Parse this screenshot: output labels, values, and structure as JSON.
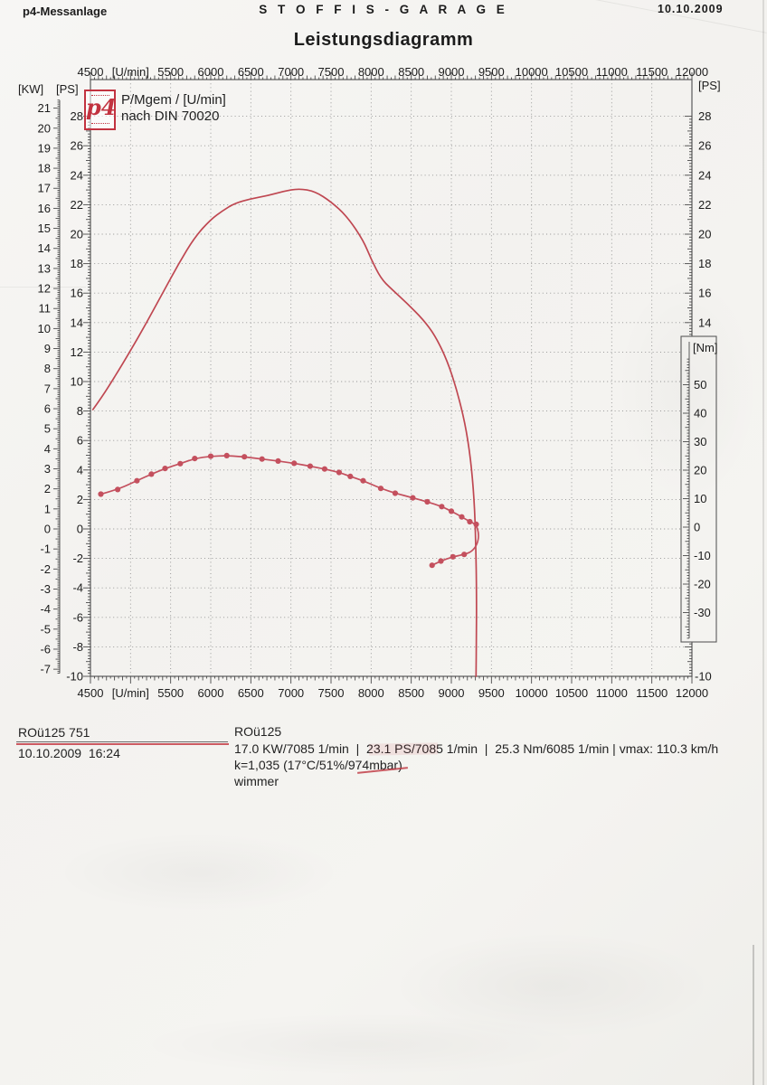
{
  "header": {
    "left": "p4-Messanlage",
    "center": "S T O F F I S - G A R A G E",
    "right": "10.10.2009"
  },
  "title": "Leistungsdiagramm",
  "legend": {
    "logo": "p4",
    "measure_label": "P/Mgem / [U/min]",
    "norm_label": "nach DIN 70020"
  },
  "footer": {
    "run_label": "ROü125 751",
    "run_datetime": "10.10.2009  16:24",
    "vehicle_name": "ROü125",
    "results": "17.0 KW/7085 1/min  |  23.1 PS/7085 1/min  |  25.3 Nm/6085 1/min | vmax: 110.3 km/h",
    "correction": "k=1,035 (17°C/51%/974mbar)",
    "operator": "wimmer"
  },
  "chart_data": {
    "type": "line",
    "title": "Leistungsdiagramm",
    "grid": "dotted, 500 U/min × 2 PS",
    "x_axis": {
      "unit": "U/min",
      "min": 4500,
      "max": 12000,
      "major_step": 500,
      "tick_labels": [
        "4500",
        "[U/min]",
        "5500",
        "6000",
        "6500",
        "7000",
        "7500",
        "8000",
        "8500",
        "9000",
        "9500",
        "10000",
        "10500",
        "11000",
        "11500",
        "12000"
      ]
    },
    "y_axes": {
      "kw_left": {
        "label": "[KW]",
        "min": -7,
        "max": 21,
        "step": 1
      },
      "ps_left": {
        "label": "[PS]",
        "min": -10,
        "max": 28,
        "step": 2
      },
      "ps_right": {
        "label": "[PS]",
        "visible_labels": [
          28,
          26,
          24,
          22,
          20,
          18,
          16,
          14
        ],
        "bottom_label": "-10"
      },
      "nm_right": {
        "label": "[Nm]",
        "min": -30,
        "max": 50,
        "step": 10
      }
    },
    "series": [
      {
        "id": "power",
        "name": "P",
        "unit": "PS",
        "axis": "ps",
        "color": "#bf4751",
        "markers": false,
        "points": [
          [
            4530,
            8.1
          ],
          [
            4650,
            9.0
          ],
          [
            4800,
            10.3
          ],
          [
            5000,
            12.1
          ],
          [
            5200,
            14.0
          ],
          [
            5400,
            16.0
          ],
          [
            5600,
            18.0
          ],
          [
            5800,
            19.8
          ],
          [
            6000,
            21.0
          ],
          [
            6150,
            21.6
          ],
          [
            6300,
            22.1
          ],
          [
            6500,
            22.4
          ],
          [
            6700,
            22.6
          ],
          [
            6900,
            22.9
          ],
          [
            7100,
            23.1
          ],
          [
            7300,
            22.9
          ],
          [
            7500,
            22.2
          ],
          [
            7700,
            21.2
          ],
          [
            7900,
            19.6
          ],
          [
            8000,
            18.3
          ],
          [
            8120,
            17.0
          ],
          [
            8250,
            16.3
          ],
          [
            8450,
            15.3
          ],
          [
            8650,
            14.2
          ],
          [
            8800,
            13.1
          ],
          [
            8950,
            11.4
          ],
          [
            9070,
            9.4
          ],
          [
            9170,
            7.2
          ],
          [
            9240,
            4.8
          ],
          [
            9285,
            2.0
          ],
          [
            9305,
            -1.0
          ],
          [
            9315,
            -4.5
          ],
          [
            9312,
            -7.5
          ],
          [
            9308,
            -10.0
          ]
        ]
      },
      {
        "id": "torque",
        "name": "Mgem",
        "unit": "Nm",
        "axis": "nm",
        "color": "#c4505e",
        "markers": true,
        "points": [
          [
            4630,
            11.6,
            1
          ],
          [
            4840,
            13.2,
            1
          ],
          [
            5080,
            16.3,
            1
          ],
          [
            5260,
            18.6,
            1
          ],
          [
            5430,
            20.6,
            1
          ],
          [
            5620,
            22.3,
            1
          ],
          [
            5800,
            24.1,
            1
          ],
          [
            6000,
            24.9,
            1
          ],
          [
            6200,
            25.1,
            1
          ],
          [
            6420,
            24.7,
            1
          ],
          [
            6640,
            23.9,
            1
          ],
          [
            6840,
            23.2,
            1
          ],
          [
            7040,
            22.4,
            1
          ],
          [
            7240,
            21.4,
            1
          ],
          [
            7420,
            20.4,
            1
          ],
          [
            7600,
            19.2,
            1
          ],
          [
            7740,
            17.8,
            1
          ],
          [
            7900,
            16.3,
            1
          ],
          [
            8120,
            13.6,
            1
          ],
          [
            8300,
            11.9,
            1
          ],
          [
            8520,
            10.3,
            1
          ],
          [
            8700,
            8.9,
            1
          ],
          [
            8880,
            7.2,
            1
          ],
          [
            9000,
            5.6,
            1
          ],
          [
            9130,
            3.6,
            1
          ],
          [
            9230,
            1.9,
            1
          ],
          [
            9310,
            1.0,
            1
          ],
          [
            9345,
            -2.5,
            0
          ],
          [
            9325,
            -6.0,
            0
          ],
          [
            9255,
            -8.6,
            0
          ],
          [
            9160,
            -9.6,
            1
          ],
          [
            9020,
            -10.4,
            1
          ],
          [
            8870,
            -11.9,
            1
          ],
          [
            8760,
            -13.4,
            1
          ]
        ]
      }
    ],
    "peaks": {
      "power_kw": "17.0 KW/7085 1/min",
      "power_ps": "23.1 PS/7085 1/min",
      "torque": "25.3 Nm/6085 1/min",
      "vmax": "110.3 km/h"
    }
  }
}
